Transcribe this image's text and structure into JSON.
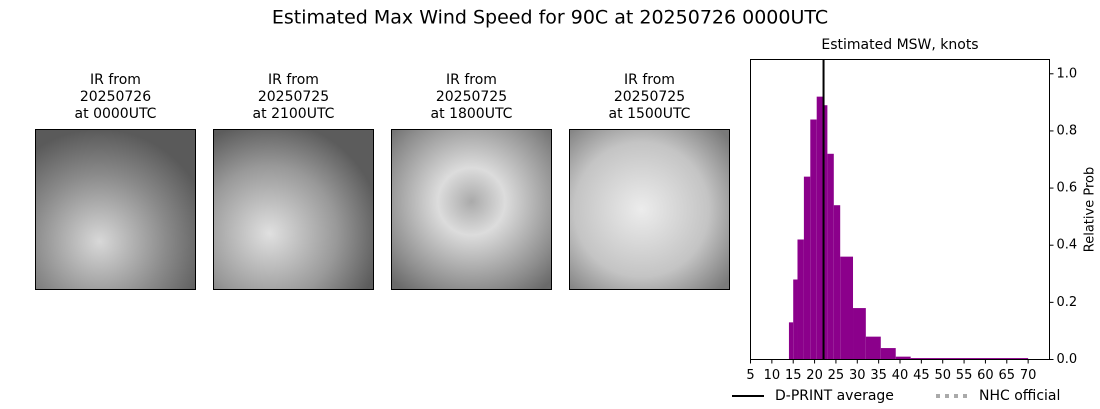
{
  "title": "Estimated Max Wind Speed for 90C at 20250726 0000UTC",
  "panels": [
    {
      "lines": [
        "IR from",
        "20250726",
        "at 0000UTC"
      ]
    },
    {
      "lines": [
        "IR from",
        "20250725",
        "at 2100UTC"
      ]
    },
    {
      "lines": [
        "IR from",
        "20250725",
        "at 1800UTC"
      ]
    },
    {
      "lines": [
        "IR from",
        "20250725",
        "at 1500UTC"
      ]
    }
  ],
  "chart_data": {
    "type": "histogram",
    "title": "Estimated MSW, knots",
    "ylabel": "Relative Prob",
    "bins": [
      14,
      15,
      16,
      17.5,
      19,
      20.5,
      22,
      23,
      24.5,
      26,
      29,
      32,
      35.5,
      39,
      42.5,
      70
    ],
    "values": [
      0.13,
      0.28,
      0.42,
      0.64,
      0.84,
      0.92,
      0.89,
      0.72,
      0.54,
      0.36,
      0.18,
      0.08,
      0.04,
      0.01,
      0.005
    ],
    "color": "#8b008b",
    "xlim": [
      5,
      75
    ],
    "xticks": [
      5,
      10,
      15,
      20,
      25,
      30,
      35,
      40,
      45,
      50,
      55,
      60,
      65,
      70
    ],
    "ylim": [
      0,
      1.05
    ],
    "yticks": [
      {
        "value": 0,
        "label": "0.0"
      },
      {
        "value": 0.2,
        "label": "0.2"
      },
      {
        "value": 0.4,
        "label": "0.4"
      },
      {
        "value": 0.6,
        "label": "0.6"
      },
      {
        "value": 0.8,
        "label": "0.8"
      },
      {
        "value": 1,
        "label": "1.0"
      }
    ],
    "lines": [
      {
        "name": "D-PRINT average",
        "color": "#000000",
        "value": 22.1,
        "style": "solid"
      },
      {
        "name": "NHC official",
        "color": "#aaaaaa",
        "style": "dotted"
      }
    ]
  }
}
